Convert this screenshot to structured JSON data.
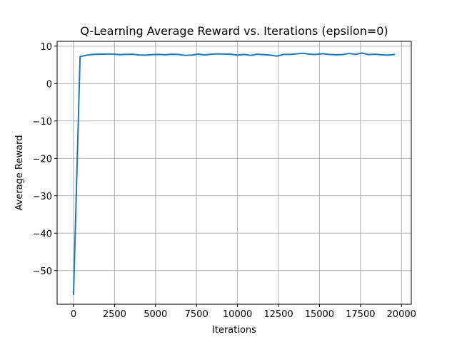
{
  "chart_data": {
    "type": "line",
    "title": "Q-Learning Average Reward vs. Iterations (epsilon=0)",
    "xlabel": "Iterations",
    "ylabel": "Average Reward",
    "xlim": [
      -1000,
      20600
    ],
    "ylim": [
      -59,
      11.3
    ],
    "xticks": [
      0,
      2500,
      5000,
      7500,
      10000,
      12500,
      15000,
      17500,
      20000
    ],
    "xtick_labels": [
      "0",
      "2500",
      "5000",
      "7500",
      "10000",
      "12500",
      "15000",
      "17500",
      "20000"
    ],
    "yticks": [
      10,
      0,
      -10,
      -20,
      -30,
      -40,
      -50
    ],
    "ytick_labels": [
      "10",
      "0",
      "−10",
      "−20",
      "−30",
      "−40",
      "−50"
    ],
    "grid": true,
    "line_color": "#1f77b4",
    "series": [
      {
        "x": [
          0,
          400,
          800,
          1200,
          1600,
          2000,
          2400,
          2800,
          3200,
          3600,
          4000,
          4400,
          4800,
          5200,
          5600,
          6000,
          6400,
          6800,
          7200,
          7600,
          8000,
          8400,
          8800,
          9200,
          9600,
          10000,
          10400,
          10800,
          11200,
          11600,
          12000,
          12400,
          12800,
          13200,
          13600,
          14000,
          14400,
          14800,
          15200,
          15600,
          16000,
          16400,
          16800,
          17200,
          17600,
          18000,
          18400,
          18800,
          19200,
          19600
        ],
        "y": [
          -56.5,
          7.2,
          7.6,
          7.8,
          7.85,
          7.9,
          7.9,
          7.75,
          7.8,
          7.85,
          7.65,
          7.6,
          7.75,
          7.8,
          7.7,
          7.85,
          7.8,
          7.55,
          7.6,
          7.9,
          7.65,
          7.85,
          7.95,
          7.9,
          7.85,
          7.6,
          7.8,
          7.55,
          7.85,
          7.75,
          7.6,
          7.35,
          7.8,
          7.8,
          7.95,
          8.1,
          7.85,
          7.8,
          8.0,
          7.8,
          7.7,
          7.75,
          8.05,
          7.8,
          8.15,
          7.75,
          7.85,
          7.7,
          7.6,
          7.8
        ]
      }
    ]
  }
}
